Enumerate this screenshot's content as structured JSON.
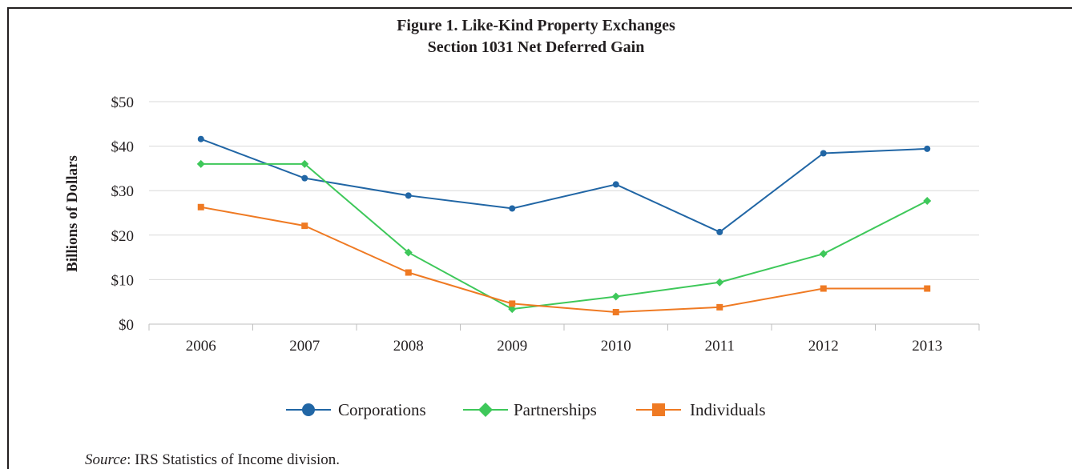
{
  "chart_data": {
    "type": "line",
    "title": "Figure 1. Like-Kind Property Exchanges",
    "subtitle": "Section 1031 Net Deferred Gain",
    "xlabel": "",
    "ylabel": "Billions of Dollars",
    "x": [
      "2006",
      "2007",
      "2008",
      "2009",
      "2010",
      "2011",
      "2012",
      "2013"
    ],
    "ylim": [
      0,
      50
    ],
    "yticks": [
      0,
      10,
      20,
      30,
      40,
      50
    ],
    "ytick_labels": [
      "$0",
      "$10",
      "$20",
      "$30",
      "$40",
      "$50"
    ],
    "grid": true,
    "legend_position": "bottom",
    "series": [
      {
        "name": "Corporations",
        "color": "#2166a5",
        "marker": "circle",
        "values": [
          41.6,
          32.8,
          28.9,
          26.0,
          31.4,
          20.7,
          38.4,
          39.4
        ]
      },
      {
        "name": "Partnerships",
        "color": "#3ec85a",
        "marker": "diamond",
        "values": [
          36.0,
          36.0,
          16.1,
          3.4,
          6.2,
          9.4,
          15.8,
          27.7
        ]
      },
      {
        "name": "Individuals",
        "color": "#ef7a23",
        "marker": "square",
        "values": [
          26.3,
          22.1,
          11.6,
          4.6,
          2.7,
          3.8,
          8.0,
          8.0
        ]
      }
    ]
  },
  "source": {
    "label": "Source",
    "text": ": IRS Statistics of Income division."
  }
}
